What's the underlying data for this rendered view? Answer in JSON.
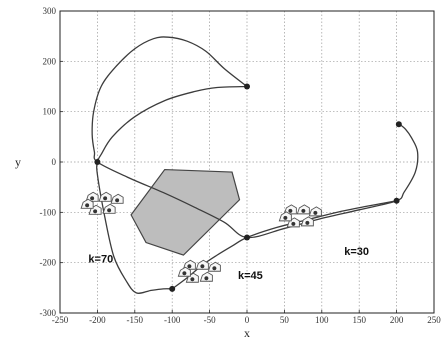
{
  "chart_data": {
    "type": "line",
    "xlabel": "x",
    "ylabel": "y",
    "xlim": [
      -250,
      250
    ],
    "ylim": [
      -300,
      300
    ],
    "xticks": [
      -250,
      -200,
      -150,
      -100,
      -50,
      0,
      50,
      100,
      150,
      200,
      250
    ],
    "yticks": [
      -300,
      -200,
      -100,
      0,
      100,
      200,
      300
    ],
    "xtick_labels": [
      "-250",
      "-200",
      "-150",
      "-100",
      "-50",
      "0",
      "50",
      "100",
      "150",
      "200",
      "250"
    ],
    "ytick_labels": [
      "-300",
      "-200",
      "-100",
      "0",
      "100",
      "200",
      "300"
    ],
    "grid": true,
    "series": [
      {
        "values": [
          [
            0,
            150
          ],
          [
            -40,
            148
          ],
          [
            -70,
            140
          ],
          [
            -110,
            122
          ],
          [
            -150,
            90
          ],
          [
            -180,
            50
          ],
          [
            -195,
            15
          ],
          [
            -200,
            0
          ],
          [
            -200,
            -25
          ],
          [
            -190,
            -110
          ],
          [
            -178,
            -188
          ],
          [
            -162,
            -235
          ],
          [
            -148,
            -260
          ],
          [
            -128,
            -255
          ],
          [
            -112,
            -252
          ],
          [
            -100,
            -252
          ]
        ]
      },
      {
        "values": [
          [
            0,
            150
          ],
          [
            -30,
            185
          ],
          [
            -55,
            220
          ],
          [
            -80,
            240
          ],
          [
            -105,
            248
          ],
          [
            -125,
            245
          ],
          [
            -150,
            225
          ],
          [
            -175,
            190
          ],
          [
            -195,
            150
          ],
          [
            -205,
            100
          ],
          [
            -207,
            55
          ],
          [
            -204,
            20
          ],
          [
            -200,
            0
          ],
          [
            -160,
            -30
          ],
          [
            -110,
            -62
          ],
          [
            -70,
            -90
          ],
          [
            -30,
            -120
          ],
          [
            0,
            -150
          ],
          [
            50,
            -132
          ],
          [
            100,
            -112
          ],
          [
            150,
            -95
          ],
          [
            200,
            -77
          ],
          [
            210,
            -60
          ],
          [
            225,
            -20
          ],
          [
            228,
            20
          ],
          [
            220,
            48
          ],
          [
            212,
            65
          ],
          [
            204,
            75
          ]
        ]
      },
      {
        "values": [
          [
            -100,
            -252
          ],
          [
            -80,
            -230
          ],
          [
            -60,
            -205
          ],
          [
            -40,
            -185
          ],
          [
            -20,
            -167
          ],
          [
            0,
            -150
          ],
          [
            40,
            -130
          ],
          [
            80,
            -115
          ],
          [
            120,
            -100
          ],
          [
            160,
            -88
          ],
          [
            200,
            -77
          ]
        ]
      }
    ],
    "waypoints": [
      [
        0,
        150
      ],
      [
        -200,
        0
      ],
      [
        0,
        -150
      ],
      [
        -100,
        -252
      ],
      [
        200,
        -77
      ],
      [
        203,
        75
      ]
    ],
    "obstacle": [
      [
        -155,
        -105
      ],
      [
        -110,
        -15
      ],
      [
        -20,
        -20
      ],
      [
        -10,
        -75
      ],
      [
        -85,
        -185
      ],
      [
        -135,
        -160
      ]
    ],
    "vessel_groups": [
      {
        "label": "k=70",
        "center": [
          -195,
          -90
        ]
      },
      {
        "label": "k=45",
        "center": [
          -65,
          -225
        ]
      },
      {
        "label": "k=30",
        "center": [
          70,
          -115
        ]
      }
    ],
    "annotations": [
      {
        "text": "k=70",
        "x": -212,
        "y": -200
      },
      {
        "text": "k=45",
        "x": -12,
        "y": -232
      },
      {
        "text": "k=30",
        "x": 130,
        "y": -185
      }
    ]
  }
}
